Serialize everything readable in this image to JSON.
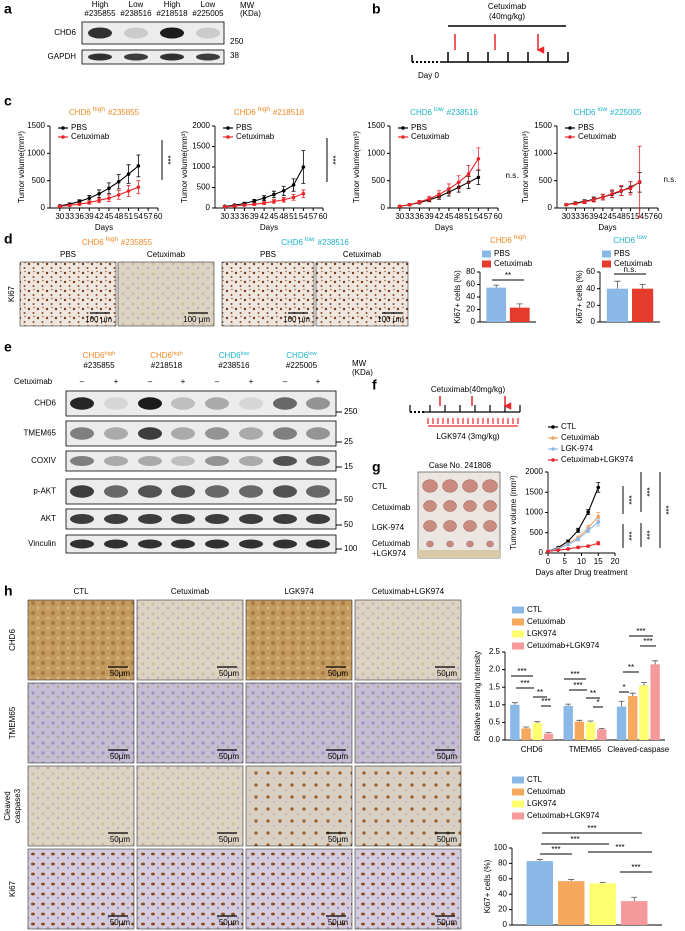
{
  "panel_labels": [
    "a",
    "b",
    "c",
    "d",
    "e",
    "f",
    "g",
    "h"
  ],
  "a": {
    "columns": [
      [
        "High",
        "#235855"
      ],
      [
        "Low",
        "#238516"
      ],
      [
        "High",
        "#218518"
      ],
      [
        "Low",
        "#225005"
      ]
    ],
    "mw_header": [
      "MW",
      "(KDa)"
    ],
    "rows": [
      "CHD6",
      "GAPDH"
    ],
    "mw": [
      250,
      38
    ]
  },
  "b": {
    "drug": "Cetuximab",
    "dose": "(40mg/kg)",
    "start": "Day 0"
  },
  "d": {
    "groups": [
      {
        "title": [
          "CHD6",
          "high",
          "#235855"
        ],
        "color": "#f08a24",
        "conditions": [
          "PBS",
          "Cetuximab"
        ]
      },
      {
        "title": [
          "CHD6",
          "low",
          "#238516"
        ],
        "color": "#1cb3c8",
        "conditions": [
          "PBS",
          "Cetuximab"
        ]
      }
    ],
    "row_label": "Ki67",
    "scale_bar": "100 μm"
  },
  "e": {
    "groups": [
      {
        "name": [
          "CHD6",
          "high"
        ],
        "id": "#235855",
        "color": "#f08a24"
      },
      {
        "name": [
          "CHD6",
          "high"
        ],
        "id": "#218518",
        "color": "#f08a24"
      },
      {
        "name": [
          "CHD6",
          "low"
        ],
        "id": "#238516",
        "color": "#1cb3c8"
      },
      {
        "name": [
          "CHD6",
          "low"
        ],
        "id": "#225005",
        "color": "#1cb3c8"
      }
    ],
    "treatment": "Cetuximab",
    "lanes": [
      "–",
      "+"
    ],
    "rows": [
      "CHD6",
      "TMEM65",
      "COXIV",
      "p-AKT",
      "AKT",
      "Vinculin"
    ],
    "mw": [
      250,
      25,
      15,
      50,
      50,
      100
    ],
    "mw_header": [
      "MW",
      "(KDa)"
    ]
  },
  "f": {
    "drug": "Cetuximab(40mg/kg)",
    "inhibitor": "LGK974 (3mg/kg)"
  },
  "g": {
    "case": "Case No. 241808",
    "rows": [
      "CTL",
      "Cetuximab",
      "LGK-974",
      [
        "Cetuximab",
        "+LGK974"
      ]
    ]
  },
  "h": {
    "columns": [
      "CTL",
      "Cetuximab",
      "LGK974",
      "Cetuximab+LGK974"
    ],
    "rows": [
      "CHD6",
      "TMEM65",
      [
        "Cleaved",
        "caspase3"
      ],
      "Ki67"
    ],
    "scale_bar": "50μm"
  },
  "chart_data": [
    {
      "type": "line",
      "title": [
        "CHD6",
        "high",
        "#235855"
      ],
      "title_color": "#f08a24",
      "x": [
        30,
        33,
        36,
        39,
        42,
        45,
        48,
        51,
        54
      ],
      "series": [
        {
          "name": "PBS",
          "color": "#000000",
          "values": [
            40,
            70,
            120,
            180,
            260,
            360,
            480,
            620,
            770
          ],
          "errors": [
            10,
            20,
            30,
            50,
            70,
            100,
            130,
            170,
            200
          ]
        },
        {
          "name": "Cetuximab",
          "color": "#e8262a",
          "values": [
            30,
            50,
            70,
            100,
            140,
            180,
            240,
            310,
            380
          ],
          "errors": [
            10,
            15,
            20,
            30,
            40,
            60,
            80,
            100,
            120
          ]
        }
      ],
      "xlim": [
        27,
        60
      ],
      "xticks": [
        30,
        33,
        36,
        39,
        42,
        45,
        48,
        51,
        54,
        57,
        60
      ],
      "ylim": [
        0,
        1500
      ],
      "yticks": [
        0,
        500,
        1000,
        1500
      ],
      "xlabel": "Days",
      "ylabel": "Tumor volume(mm³)",
      "annotations": [
        "***"
      ]
    },
    {
      "type": "line",
      "title": [
        "CHD6",
        "high",
        "#218518"
      ],
      "title_color": "#f08a24",
      "x": [
        30,
        33,
        36,
        39,
        42,
        45,
        48,
        51,
        54
      ],
      "series": [
        {
          "name": "PBS",
          "color": "#000000",
          "values": [
            40,
            70,
            110,
            170,
            240,
            330,
            420,
            560,
            1000
          ],
          "errors": [
            10,
            20,
            30,
            40,
            60,
            80,
            110,
            150,
            400
          ]
        },
        {
          "name": "Cetuximab",
          "color": "#e8262a",
          "values": [
            30,
            50,
            70,
            90,
            120,
            160,
            200,
            260,
            350
          ],
          "errors": [
            10,
            15,
            20,
            25,
            35,
            45,
            55,
            70,
            90
          ]
        }
      ],
      "xlim": [
        27,
        60
      ],
      "xticks": [
        30,
        33,
        36,
        39,
        42,
        45,
        48,
        51,
        54,
        57,
        60
      ],
      "ylim": [
        0,
        2000
      ],
      "yticks": [
        0,
        500,
        1000,
        1500,
        2000
      ],
      "xlabel": "Days",
      "ylabel": "Tumor volume(mm³)",
      "annotations": [
        "***"
      ]
    },
    {
      "type": "line",
      "title": [
        "CHD6",
        "low",
        "#238516"
      ],
      "title_color": "#1cb3c8",
      "x": [
        30,
        33,
        36,
        39,
        42,
        45,
        48,
        51,
        54
      ],
      "series": [
        {
          "name": "PBS",
          "color": "#000000",
          "values": [
            30,
            60,
            100,
            150,
            210,
            290,
            380,
            470,
            560
          ],
          "errors": [
            10,
            15,
            25,
            35,
            50,
            70,
            90,
            110,
            130
          ]
        },
        {
          "name": "Cetuximab",
          "color": "#e8262a",
          "values": [
            30,
            60,
            110,
            170,
            250,
            350,
            470,
            620,
            900
          ],
          "errors": [
            10,
            20,
            30,
            45,
            65,
            90,
            120,
            160,
            200
          ]
        }
      ],
      "xlim": [
        27,
        60
      ],
      "xticks": [
        30,
        33,
        36,
        39,
        42,
        45,
        48,
        51,
        54,
        57,
        60
      ],
      "ylim": [
        0,
        1500
      ],
      "yticks": [
        0,
        500,
        1000,
        1500
      ],
      "xlabel": "Days",
      "ylabel": "Tumor volume(mm³)",
      "annotations": [
        "n.s."
      ]
    },
    {
      "type": "line",
      "title": [
        "CHD6",
        "low",
        "#225005"
      ],
      "title_color": "#1cb3c8",
      "x": [
        30,
        33,
        36,
        39,
        42,
        45,
        48,
        51,
        54
      ],
      "series": [
        {
          "name": "PBS",
          "color": "#000000",
          "values": [
            60,
            90,
            120,
            160,
            200,
            250,
            310,
            380,
            470
          ],
          "errors": [
            15,
            20,
            30,
            40,
            50,
            60,
            80,
            100,
            180
          ]
        },
        {
          "name": "Cetuximab",
          "color": "#e8262a",
          "values": [
            60,
            80,
            110,
            150,
            200,
            260,
            320,
            360,
            480
          ],
          "errors": [
            15,
            20,
            30,
            40,
            50,
            70,
            90,
            120,
            650
          ]
        }
      ],
      "xlim": [
        27,
        60
      ],
      "xticks": [
        30,
        33,
        36,
        39,
        42,
        45,
        48,
        51,
        54,
        57,
        60
      ],
      "ylim": [
        0,
        1500
      ],
      "yticks": [
        0,
        500,
        1000,
        1500
      ],
      "xlabel": "Days",
      "ylabel": "Tumor volume(mm³)",
      "annotations": [
        "n.s."
      ]
    },
    {
      "type": "bar",
      "title": [
        "CHD6",
        "high"
      ],
      "title_color": "#f08a24",
      "series": [
        {
          "name": "PBS",
          "color": "#8ab9e8",
          "values": [
            55
          ],
          "errors": [
            4
          ]
        },
        {
          "name": "Cetuximab",
          "color": "#e53b2c",
          "values": [
            23
          ],
          "errors": [
            6
          ]
        }
      ],
      "ylim": [
        0,
        80
      ],
      "yticks": [
        0,
        20,
        40,
        60,
        80
      ],
      "ylabel": "Ki67+ cells (%)",
      "annotations": [
        "**"
      ]
    },
    {
      "type": "bar",
      "title": [
        "CHD6",
        "low"
      ],
      "title_color": "#1cb3c8",
      "series": [
        {
          "name": "PBS",
          "color": "#8ab9e8",
          "values": [
            40
          ],
          "errors": [
            9
          ]
        },
        {
          "name": "Cetuximab",
          "color": "#e53b2c",
          "values": [
            40
          ],
          "errors": [
            5
          ]
        }
      ],
      "ylim": [
        0,
        60
      ],
      "yticks": [
        0,
        20,
        40,
        60
      ],
      "ylabel": "Ki67+ cells (%)",
      "annotations": [
        "n.s."
      ]
    },
    {
      "type": "line",
      "x": [
        0,
        3,
        6,
        9,
        12,
        15
      ],
      "series": [
        {
          "name": "CTL",
          "color": "#000000",
          "values": [
            50,
            130,
            290,
            560,
            1010,
            1620
          ],
          "errors": [
            10,
            20,
            30,
            50,
            60,
            120
          ]
        },
        {
          "name": "Cetuximab",
          "color": "#f4a460",
          "values": [
            50,
            110,
            220,
            380,
            620,
            900
          ],
          "errors": [
            10,
            15,
            25,
            40,
            60,
            100
          ]
        },
        {
          "name": "LGK-974",
          "color": "#8ab9e8",
          "values": [
            50,
            100,
            210,
            340,
            560,
            760
          ],
          "errors": [
            10,
            15,
            25,
            40,
            60,
            90
          ]
        },
        {
          "name": "Cetuximab+LGK974",
          "color": "#e8262a",
          "values": [
            40,
            70,
            100,
            140,
            170,
            240
          ],
          "errors": [
            5,
            10,
            15,
            20,
            25,
            40
          ]
        }
      ],
      "xlim": [
        0,
        20
      ],
      "xticks": [
        0,
        5,
        10,
        15,
        20
      ],
      "ylim": [
        0,
        2000
      ],
      "yticks": [
        0,
        500,
        1000,
        1500,
        2000
      ],
      "xlabel": "Days after Drug treatment",
      "ylabel": "Tumor volume (mm³)",
      "annotations": [
        "***",
        "***",
        "***",
        "***",
        "***"
      ]
    },
    {
      "type": "bar",
      "categories": [
        "CHD6",
        "TMEM65",
        "Cleaved-caspase"
      ],
      "series": [
        {
          "name": "CTL",
          "color": "#8ab9e8",
          "values": [
            1.0,
            0.97,
            0.95
          ],
          "errors": [
            0.06,
            0.05,
            0.15
          ]
        },
        {
          "name": "Cetuximab",
          "color": "#f6a95c",
          "values": [
            0.33,
            0.52,
            1.25
          ],
          "errors": [
            0.04,
            0.04,
            0.08
          ]
        },
        {
          "name": "LGK974",
          "color": "#ffff70",
          "values": [
            0.48,
            0.5,
            1.55
          ],
          "errors": [
            0.04,
            0.04,
            0.08
          ]
        },
        {
          "name": "Cetuximab+LGK974",
          "color": "#f49a9a",
          "values": [
            0.18,
            0.3,
            2.15
          ],
          "errors": [
            0.03,
            0.03,
            0.1
          ]
        }
      ],
      "ylim": [
        0,
        2.5
      ],
      "yticks": [
        {
          "value": 0,
          "label": "0.0"
        },
        0.5,
        {
          "value": 1,
          "label": "1.0"
        },
        1.5,
        {
          "value": 2,
          "label": "2.0"
        },
        2.5
      ],
      "ylabel": "Relative staining intensity",
      "annotations": [
        "***",
        "***",
        "**",
        "***",
        "***",
        "***",
        "**",
        "*",
        "***",
        "***",
        "**",
        "*"
      ]
    },
    {
      "type": "bar",
      "series": [
        {
          "name": "CTL",
          "color": "#8ab9e8",
          "values": [
            83
          ],
          "errors": [
            2
          ]
        },
        {
          "name": "Cetuximab",
          "color": "#f6a95c",
          "values": [
            57
          ],
          "errors": [
            2
          ]
        },
        {
          "name": "LGK974",
          "color": "#ffff70",
          "values": [
            54
          ],
          "errors": [
            1
          ]
        },
        {
          "name": "Cetuximab+LGK974",
          "color": "#f49a9a",
          "values": [
            31
          ],
          "errors": [
            5
          ]
        }
      ],
      "ylim": [
        0,
        100
      ],
      "yticks": [
        0,
        20,
        40,
        60,
        80,
        100
      ],
      "ylabel": "Ki67+ cells (%)",
      "annotations": [
        "***",
        "***",
        "***",
        "***",
        "***"
      ]
    }
  ]
}
